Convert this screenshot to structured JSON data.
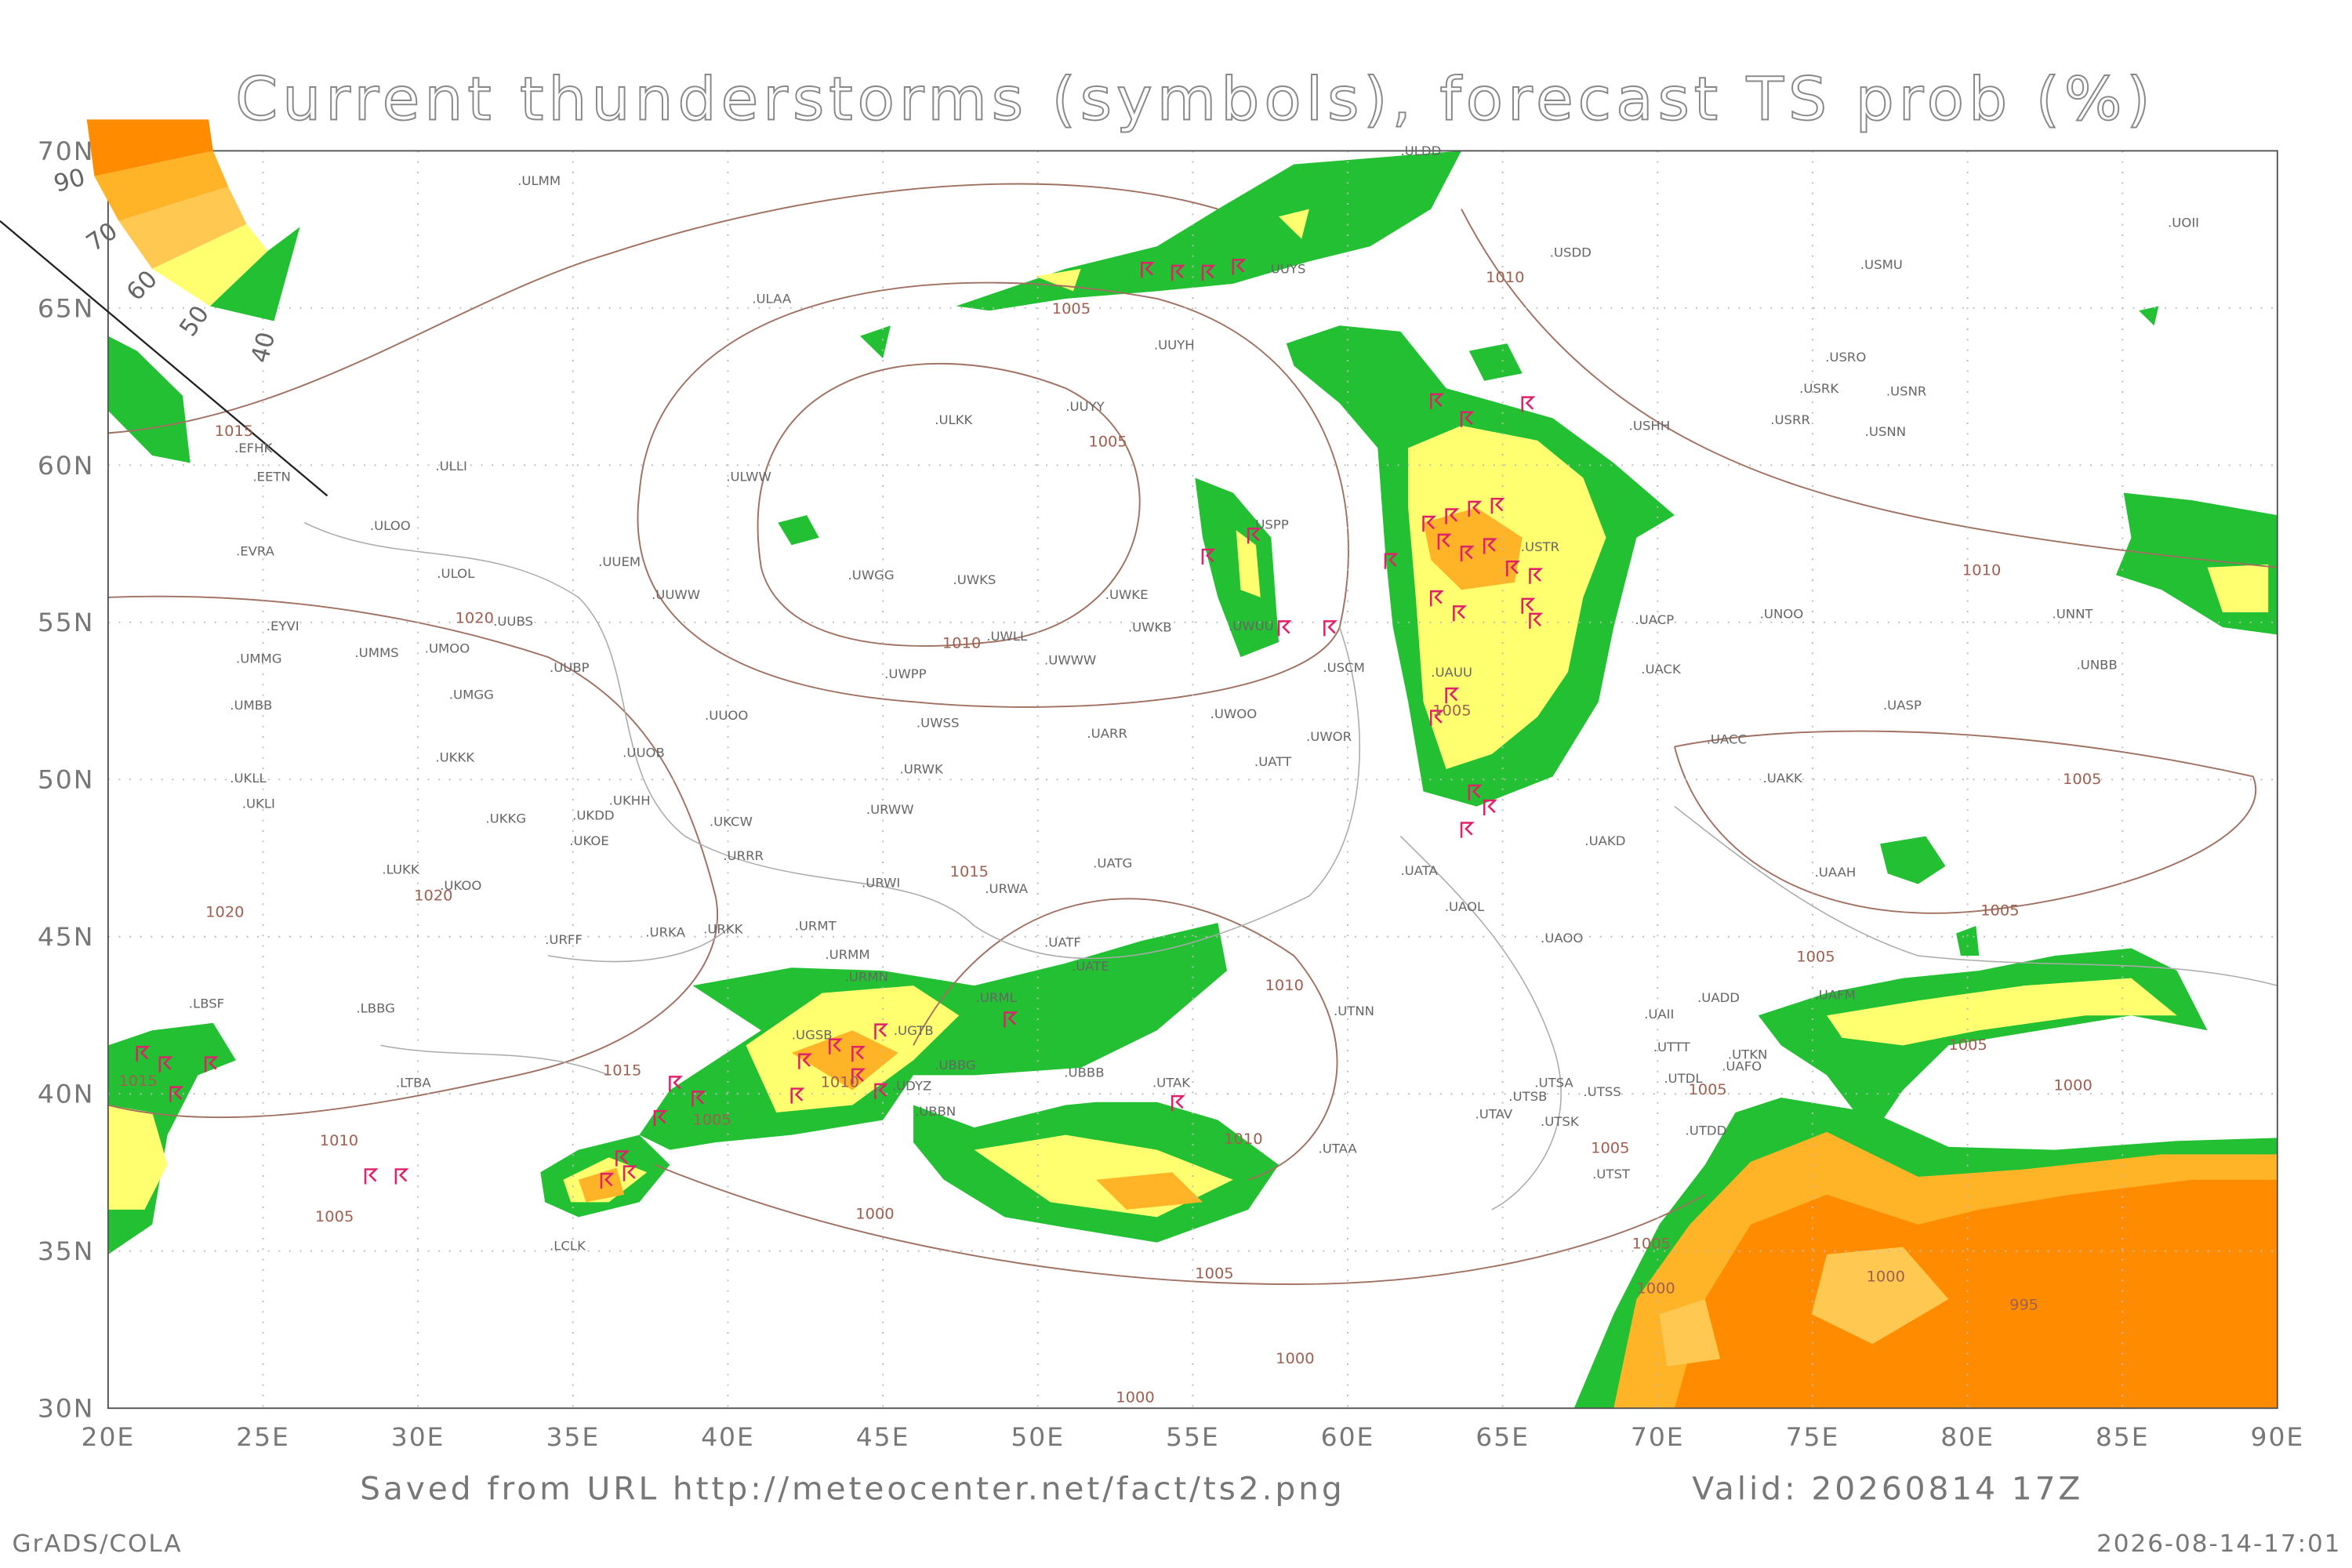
{
  "title": "Current thunderstorms (symbols), forecast TS prob (%)",
  "axes": {
    "lon_ticks": [
      "20E",
      "25E",
      "30E",
      "35E",
      "40E",
      "45E",
      "50E",
      "55E",
      "60E",
      "65E",
      "70E",
      "75E",
      "80E",
      "85E",
      "90E"
    ],
    "lat_ticks": [
      "70N",
      "65N",
      "60N",
      "55N",
      "50N",
      "45N",
      "40N",
      "35N",
      "30N"
    ]
  },
  "legend": {
    "labels": [
      "90",
      "70",
      "60",
      "50",
      "40"
    ]
  },
  "stations": [
    ".ULMM",
    ".ULAA",
    ".UUYH",
    ".UUYS",
    ".ULDD",
    ".USDD",
    ".USMU",
    ".UOII",
    ".ULKK",
    ".UUYY",
    ".USRO",
    ".USRK",
    ".USNR",
    ".USRR",
    ".USNN",
    ".USHH",
    ".EFHK",
    ".EETN",
    ".ULLI",
    ".ULWW",
    ".ULOO",
    ".USPP",
    ".USTR",
    ".EVRA",
    ".UUEM",
    ".ULOL",
    ".UWGG",
    ".UWKS",
    ".UWKE",
    ".UUWW",
    ".UUBS",
    ".EYVI",
    ".UWKB",
    ".UWUU",
    ".UACP",
    ".UNOO",
    ".UNNT",
    ".UMMG",
    ".UMMS",
    ".UMOO",
    ".UWLL",
    ".UUBP",
    ".UWWW",
    ".USCM",
    ".UACK",
    ".UNBB",
    ".UMBB",
    ".UMGG",
    ".UWPP",
    ".UUOO",
    ".UAUU",
    ".UASP",
    ".UWSS",
    ".UARR",
    ".UWOO",
    ".UWOR",
    ".UUOB",
    ".UACC",
    ".UKKK",
    ".UATT",
    ".URWK",
    ".UAKK",
    ".UKLL",
    ".UKLI",
    ".UKHH",
    ".URWW",
    ".UKKG",
    ".UKDD",
    ".UKCW",
    ".UKOE",
    ".UAKD",
    ".URRR",
    ".UATG",
    ".UAAH",
    ".LUKK",
    ".UKOO",
    ".URWI",
    ".URWA",
    ".UATA",
    ".URMT",
    ".URKK",
    ".URKA",
    ".URFF",
    ".UAOL",
    ".UAOO",
    ".UATF",
    ".URMM",
    ".URMN",
    ".UATE",
    ".UGSB",
    ".UGTB",
    ".UBBG",
    ".URML",
    ".UTNN",
    ".UADD",
    ".UAFM",
    ".UAII",
    ".UTTT",
    ".UTKN",
    ".UAFO",
    ".UTDL",
    ".LBSF",
    ".LBBG",
    ".LTBA",
    ".UDYZ",
    ".UBBN",
    ".UBBB",
    ".UTAK",
    ".UTSA",
    ".UTSB",
    ".UTSS",
    ".UTAV",
    ".UTSK",
    ".UTDD",
    ".UTAA",
    ".UTST",
    ".LCLK"
  ],
  "isobars": [
    "1015",
    "1005",
    "1010",
    "1005",
    "1020",
    "1010",
    "1010",
    "1015",
    "1020",
    "1020",
    "1010",
    "1015",
    "1015",
    "1005",
    "1010",
    "1005",
    "1000",
    "1010",
    "1005",
    "1000",
    "1000",
    "1005",
    "1005",
    "1005",
    "1005",
    "1000",
    "1005",
    "1005",
    "1005",
    "1000",
    "1000",
    "995",
    "1005",
    "1010"
  ],
  "footer": {
    "source": "Saved from URL http://meteocenter.net/fact/ts2.png",
    "valid": "Valid: 20260814 17Z",
    "credit": "GrADS/COLA",
    "timestamp": "2026-08-14-17:01"
  }
}
